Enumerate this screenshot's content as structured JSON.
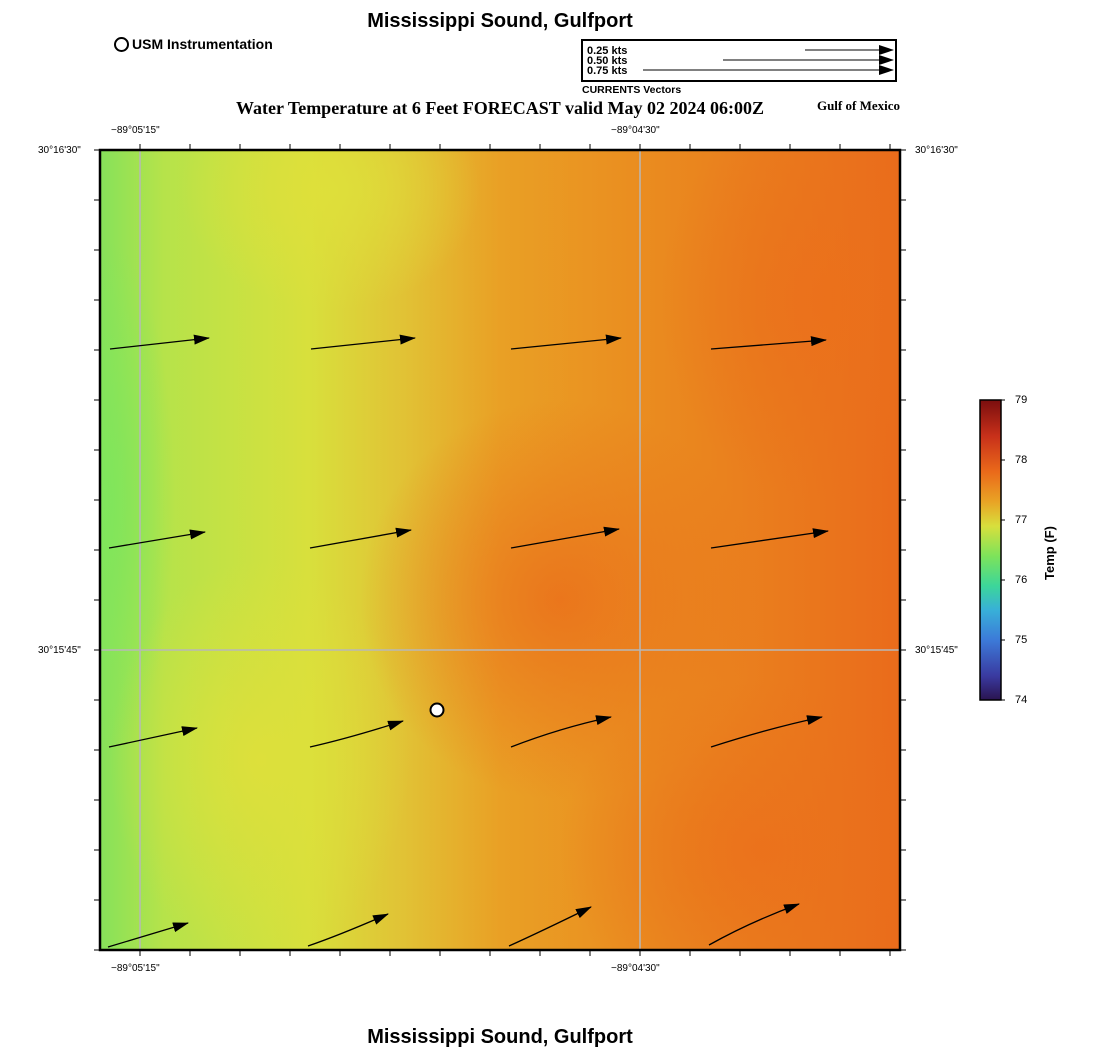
{
  "map": {
    "title": "Mississippi Sound, Gulfport",
    "footer_title": "Mississippi Sound, Gulfport",
    "plot_title": "Water Temperature at 6 Feet FORECAST valid May 02 2024 06:00Z",
    "region_label": "Gulf of Mexico",
    "station_legend": "USM Instrumentation",
    "vector_legend": {
      "entries": [
        "0.25 kts",
        "0.50 kts",
        "0.75 kts"
      ],
      "caption": "CURRENTS Vectors"
    },
    "lon_ticks": [
      "−89°05'15\"",
      "−89°04'30\""
    ],
    "lat_ticks": [
      "30°16'30\"",
      "30°15'45\""
    ],
    "colorbar": {
      "title": "Temp (F)",
      "min": 74,
      "max": 79,
      "labels": [
        "79",
        "78",
        "77",
        "76",
        "75",
        "74"
      ]
    },
    "colors": {
      "green": "#7fe35a",
      "yellow": "#dde03a",
      "orange": "#e9931f",
      "deep_orange": "#ea6a1a"
    }
  }
}
